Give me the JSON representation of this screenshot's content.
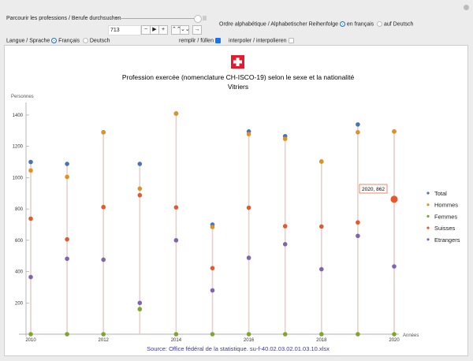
{
  "controls": {
    "browse_label": "Parcourir les professions / Berufe durchsuchen",
    "index_value": "713",
    "order_label": "Ordre alphabétique / Alphabetischer Reihenfolge",
    "order_options": [
      "en français",
      "auf Deutsch"
    ],
    "language_label": "Langue / Sprache",
    "language_options": [
      "Français",
      "Deutsch"
    ],
    "fill_label": "remplir / füllen",
    "interpolate_label": "interpoler / interpolieren",
    "buttons": [
      "−",
      "▶",
      "+",
      "⌃⌃",
      "⌄⌄",
      "→"
    ]
  },
  "colors": {
    "Total": "#4a72b8",
    "Hommes": "#e0921f",
    "Femmes": "#7ea62a",
    "Suisses": "#e9562a",
    "Etrangers": "#8163b0",
    "flag": "#e8192c",
    "source": "#3a3a9a"
  },
  "chart_data": {
    "type": "scatter",
    "title": "Profession exercée (nomenclature CH-ISCO-19) selon le sexe et la nationalité",
    "subtitle": "Vitriers",
    "ylabel": "Personnes",
    "xlabel": "Années",
    "ylim": [
      0,
      1480
    ],
    "xlim": [
      2009.8,
      2020.5
    ],
    "yticks": [
      200,
      400,
      600,
      800,
      1000,
      1200,
      1400
    ],
    "xticks": [
      2010,
      2012,
      2014,
      2016,
      2018,
      2020
    ],
    "x": [
      2010,
      2011,
      2012,
      2013,
      2014,
      2015,
      2016,
      2017,
      2018,
      2019,
      2020
    ],
    "series": [
      {
        "name": "Total",
        "values": [
          1100,
          1088,
          1290,
          1088,
          1410,
          700,
          1295,
          1265,
          1103,
          1340,
          1295
        ]
      },
      {
        "name": "Hommes",
        "values": [
          1046,
          1005,
          1290,
          930,
          1410,
          685,
          1278,
          1248,
          1103,
          1290,
          1295
        ]
      },
      {
        "name": "Femmes",
        "values": [
          0,
          0,
          0,
          160,
          0,
          0,
          0,
          0,
          0,
          0,
          0
        ]
      },
      {
        "name": "Suisses",
        "values": [
          738,
          606,
          812,
          888,
          810,
          422,
          808,
          690,
          688,
          714,
          862
        ]
      },
      {
        "name": "Etrangers",
        "values": [
          365,
          482,
          476,
          200,
          600,
          280,
          488,
          575,
          415,
          628,
          433
        ]
      }
    ],
    "tooltip": "2020, 862",
    "legend_position": "right",
    "source": "Source: Office fédéral de la statistique. su-f-40.02.03.02.01.03.10.xlsx"
  }
}
